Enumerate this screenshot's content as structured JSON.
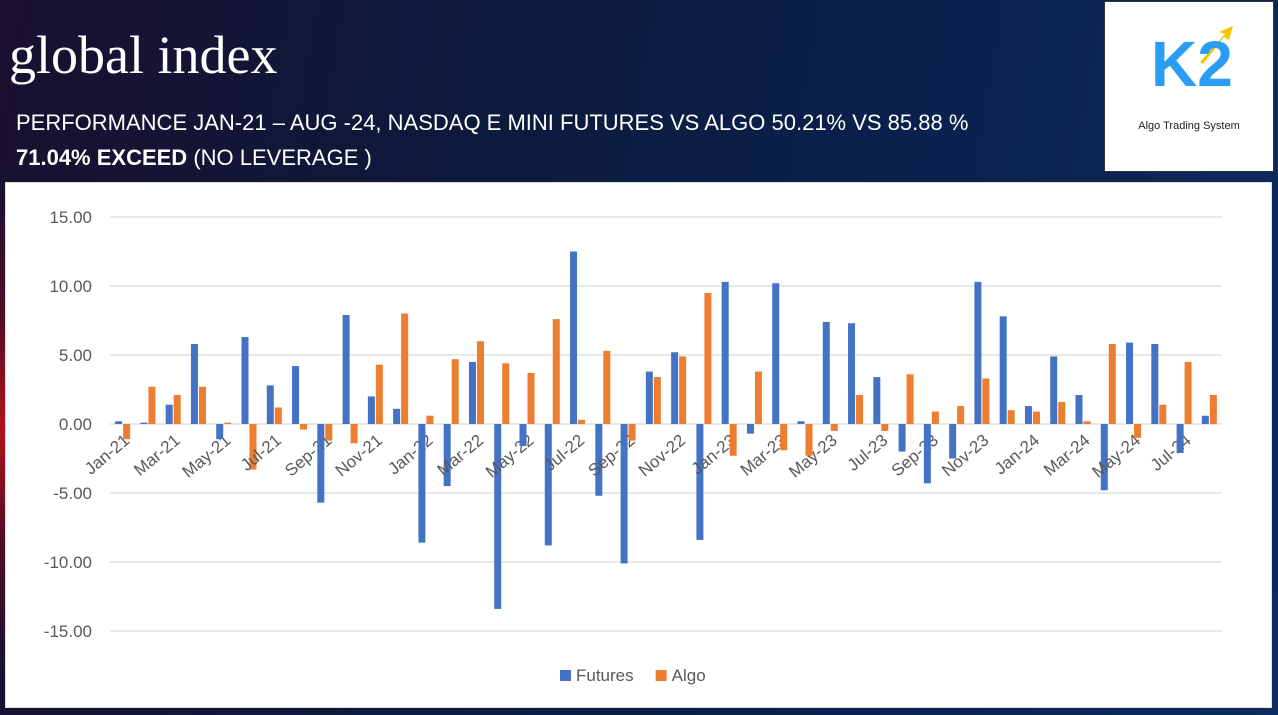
{
  "header": {
    "title": "global index",
    "subtitle": "PERFORMANCE JAN-21 – AUG -24, NASDAQ E MINI FUTURES VS ALGO  50.21% VS 85.88 %",
    "highlight": "71.04% EXCEED",
    "note": "(NO LEVERAGE )"
  },
  "logo": {
    "mark": "K2",
    "caption": "Algo Trading System"
  },
  "chart_data": {
    "type": "bar",
    "categories": [
      "Jan-21",
      null,
      "Mar-21",
      null,
      "May-21",
      null,
      "Jul-21",
      null,
      "Sep-21",
      null,
      "Nov-21",
      null,
      "Jan-22",
      null,
      "Mar-22",
      null,
      "May-22",
      null,
      "Jul-22",
      null,
      "Sep-22",
      null,
      "Nov-22",
      null,
      "Jan-23",
      null,
      "Mar-23",
      null,
      "May-23",
      null,
      "Jul-23",
      null,
      "Sep-23",
      null,
      "Nov-23",
      null,
      "Jan-24",
      null,
      "Mar-24",
      null,
      "May-24",
      null,
      "Jul-24",
      null
    ],
    "series": [
      {
        "name": "Futures",
        "color": "#4472c4",
        "values": [
          0.2,
          0.1,
          1.4,
          5.8,
          -1.1,
          6.3,
          2.8,
          4.2,
          -5.7,
          7.9,
          2.0,
          1.1,
          -8.6,
          -4.5,
          4.5,
          -13.4,
          -1.6,
          -8.8,
          12.5,
          -5.2,
          -10.1,
          3.8,
          5.2,
          -8.4,
          10.3,
          -0.7,
          10.2,
          0.2,
          7.4,
          7.3,
          3.4,
          -2.0,
          -4.3,
          -2.5,
          10.3,
          7.8,
          1.3,
          4.9,
          2.1,
          -4.8,
          5.9,
          5.8,
          -2.1,
          0.6
        ]
      },
      {
        "name": "Algo",
        "color": "#ed7d31",
        "values": [
          -1.1,
          2.7,
          2.1,
          2.7,
          0.1,
          -3.3,
          1.2,
          -0.4,
          -1.2,
          -1.4,
          4.3,
          8.0,
          0.6,
          4.7,
          6.0,
          4.4,
          3.7,
          7.6,
          0.3,
          5.3,
          -1.2,
          3.4,
          4.9,
          9.5,
          -2.3,
          3.8,
          -1.9,
          -2.3,
          -0.5,
          2.1,
          -0.5,
          3.6,
          0.9,
          1.3,
          3.3,
          1.0,
          0.9,
          1.6,
          0.2,
          5.8,
          -1.0,
          1.4,
          4.5,
          2.1
        ]
      }
    ],
    "ylim": [
      -15,
      15
    ],
    "yticks": [
      {
        "value": -15,
        "label": "-15.00"
      },
      {
        "value": -10,
        "label": "-10.00"
      },
      {
        "value": -5,
        "label": "-5.00"
      },
      {
        "value": 0,
        "label": "0.00"
      },
      {
        "value": 5,
        "label": "5.00"
      },
      {
        "value": 10,
        "label": "10.00"
      },
      {
        "value": 15,
        "label": "15.00"
      }
    ],
    "grid": true,
    "legend": "bottom"
  }
}
